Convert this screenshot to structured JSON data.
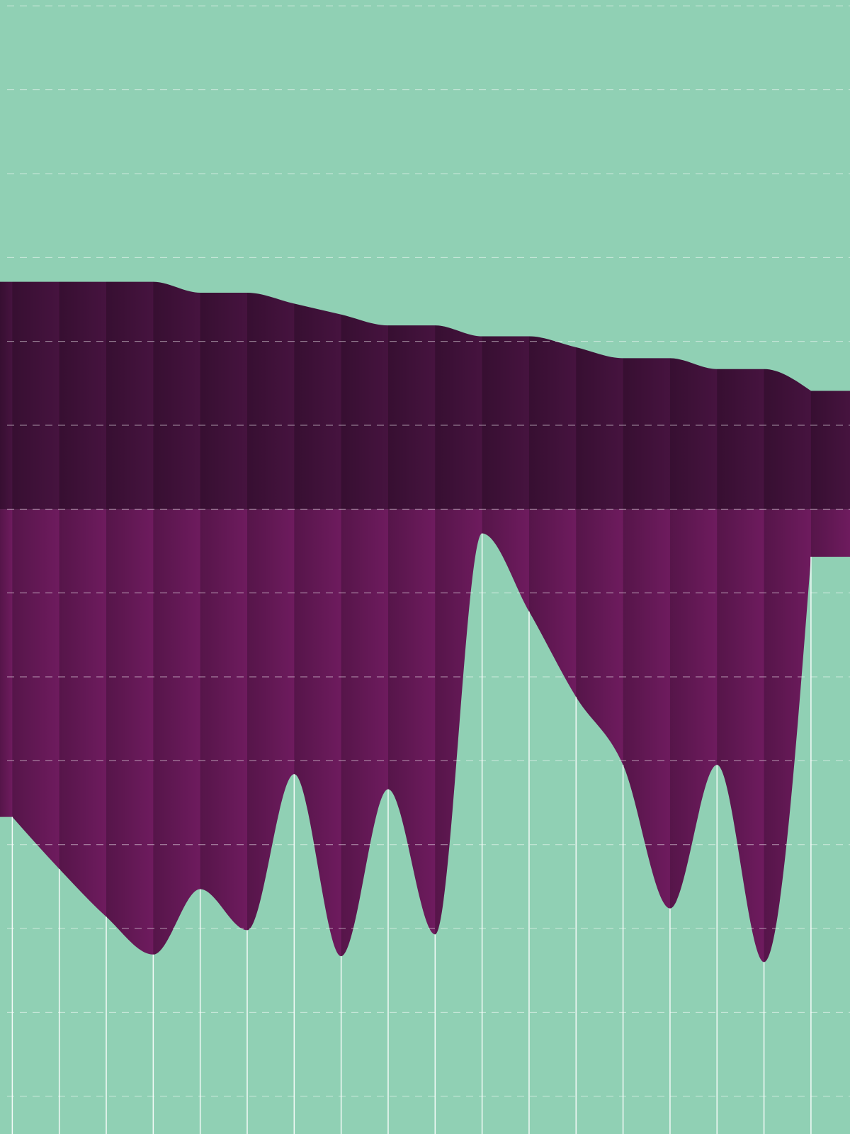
{
  "chart_data": {
    "type": "area",
    "categories": [
      null,
      null,
      null,
      null,
      null,
      null,
      null,
      null,
      null,
      null,
      null,
      null,
      null,
      null,
      null,
      null,
      null,
      null
    ],
    "series": [
      {
        "color": "#46133f",
        "values": [
          27.1,
          27.1,
          27.1,
          27.1,
          25.8,
          25.8,
          24.5,
          23.2,
          21.9,
          21.9,
          20.6,
          20.6,
          19.3,
          18.0,
          18.0,
          16.7,
          16.7,
          14.1
        ]
      },
      {
        "color": "#6e1b5e",
        "values": [
          -36.7,
          -42.9,
          -48.6,
          -53.1,
          -45.3,
          -50.2,
          -31.6,
          -53.3,
          -33.4,
          -50.7,
          -2.9,
          -12.2,
          -22.4,
          -30.5,
          -47.6,
          -30.5,
          -54.0,
          -5.7
        ]
      }
    ],
    "ylim": [
      -74.5,
      60.7
    ],
    "yticks": [
      -70,
      -60,
      -50,
      -40,
      -30,
      -20,
      -10,
      0,
      10,
      20,
      30,
      40,
      50,
      60
    ],
    "grid": true,
    "background": "#90d0b4"
  }
}
